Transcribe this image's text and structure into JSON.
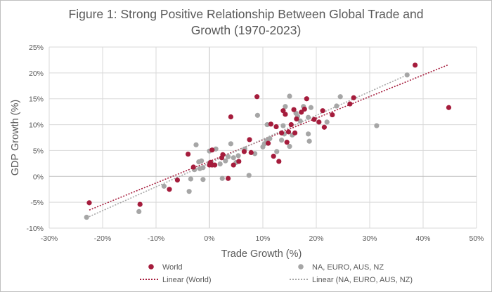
{
  "chart_data": {
    "type": "scatter",
    "title_lines": [
      "Figure 1: Strong Positive Relationship Between Global Trade and",
      "Growth (1970-2023)"
    ],
    "xlabel": "Trade Growth (%)",
    "ylabel": "GDP Growth (%)",
    "xlim": [
      -30,
      50
    ],
    "ylim": [
      -10,
      25
    ],
    "x_ticks": [
      -30,
      -20,
      -10,
      0,
      10,
      20,
      30,
      40,
      50
    ],
    "y_ticks": [
      -10,
      -5,
      0,
      5,
      10,
      15,
      20,
      25
    ],
    "x_tick_labels": [
      "-30%",
      "-20%",
      "-10%",
      "0%",
      "10%",
      "20%",
      "30%",
      "40%",
      "50%"
    ],
    "y_tick_labels": [
      "-10%",
      "-5%",
      "0%",
      "5%",
      "10%",
      "15%",
      "20%",
      "25%"
    ],
    "grid": "vertical and horizontal major gridlines",
    "legend_position": "bottom",
    "series": [
      {
        "name": "World",
        "color": "#a51c3c",
        "points": [
          [
            -22.5,
            -5.1
          ],
          [
            -13,
            -5.4
          ],
          [
            -7.5,
            -2.5
          ],
          [
            -6,
            -0.7
          ],
          [
            -4,
            4.3
          ],
          [
            -3,
            1.8
          ],
          [
            0,
            2.2
          ],
          [
            0.2,
            2.7
          ],
          [
            0.5,
            2.2
          ],
          [
            1,
            2.2
          ],
          [
            0.5,
            5.1
          ],
          [
            2.3,
            3.6
          ],
          [
            2.5,
            4.2
          ],
          [
            3.5,
            -0.4
          ],
          [
            4,
            11.5
          ],
          [
            4.5,
            2.2
          ],
          [
            5.5,
            2.9
          ],
          [
            6.5,
            4.8
          ],
          [
            7.5,
            7.1
          ],
          [
            7.8,
            4.6
          ],
          [
            8.9,
            15.4
          ],
          [
            11,
            6.4
          ],
          [
            11.5,
            10.1
          ],
          [
            12,
            3.9
          ],
          [
            12.5,
            9.6
          ],
          [
            13,
            2.9
          ],
          [
            13.5,
            8.4
          ],
          [
            13.8,
            12.7
          ],
          [
            14.2,
            12.0
          ],
          [
            14.5,
            6.6
          ],
          [
            14.8,
            8.6
          ],
          [
            15.3,
            10.0
          ],
          [
            15.8,
            12.9
          ],
          [
            16,
            8.4
          ],
          [
            16.3,
            11.1
          ],
          [
            17.2,
            12.4
          ],
          [
            17.8,
            13.0
          ],
          [
            18.2,
            15.0
          ],
          [
            19.6,
            11.0
          ],
          [
            20.5,
            10.5
          ],
          [
            21.2,
            12.7
          ],
          [
            21.5,
            9.5
          ],
          [
            23,
            11.9
          ],
          [
            26.3,
            14.0
          ],
          [
            27,
            15.2
          ],
          [
            38.5,
            21.5
          ],
          [
            44.8,
            13.3
          ]
        ]
      },
      {
        "name": "NA, EURO, AUS, NZ",
        "color": "#a6a6a6",
        "points": [
          [
            -23,
            -7.9
          ],
          [
            -13.2,
            -6.8
          ],
          [
            -8.5,
            -1.9
          ],
          [
            -3.8,
            -2.9
          ],
          [
            -3.5,
            -0.5
          ],
          [
            -2.8,
            1.3
          ],
          [
            -2.5,
            6.1
          ],
          [
            -2,
            2.8
          ],
          [
            -1.8,
            1.5
          ],
          [
            -1.5,
            3.0
          ],
          [
            -1.2,
            1.7
          ],
          [
            -1.2,
            -0.6
          ],
          [
            0,
            2.6
          ],
          [
            0,
            4.9
          ],
          [
            0.5,
            2.3
          ],
          [
            1.2,
            5.3
          ],
          [
            2,
            2.4
          ],
          [
            2.4,
            -0.4
          ],
          [
            3,
            3.0
          ],
          [
            3.5,
            3.8
          ],
          [
            4,
            6.3
          ],
          [
            4.5,
            3.6
          ],
          [
            5,
            2.7
          ],
          [
            5.4,
            4.0
          ],
          [
            6.6,
            5.3
          ],
          [
            7.4,
            0.2
          ],
          [
            8.5,
            4.4
          ],
          [
            9,
            11.8
          ],
          [
            10,
            5.7
          ],
          [
            10.3,
            6.3
          ],
          [
            10.7,
            6.9
          ],
          [
            10.8,
            10.0
          ],
          [
            11.3,
            7.3
          ],
          [
            12.6,
            4.8
          ],
          [
            13.5,
            7.0
          ],
          [
            13.8,
            9.8
          ],
          [
            14,
            8.2
          ],
          [
            14.2,
            13.5
          ],
          [
            15,
            5.8
          ],
          [
            15,
            15.5
          ],
          [
            15.5,
            8.0
          ],
          [
            16.2,
            12.2
          ],
          [
            16.5,
            11.6
          ],
          [
            17,
            10.7
          ],
          [
            17.6,
            13.5
          ],
          [
            18.5,
            8.2
          ],
          [
            18.5,
            11.4
          ],
          [
            18.7,
            6.8
          ],
          [
            19,
            13.3
          ],
          [
            22,
            10.5
          ],
          [
            23.8,
            13.6
          ],
          [
            24.5,
            15.4
          ],
          [
            31.3,
            9.8
          ],
          [
            37,
            19.6
          ]
        ]
      }
    ],
    "trendlines": [
      {
        "name": "Linear (World)",
        "color": "#a51c3c",
        "x": [
          -22.5,
          44.8
        ],
        "y": [
          -6.5,
          21.6
        ]
      },
      {
        "name": "Linear (NA, EURO, AUS, NZ)",
        "color": "#a6a6a6",
        "x": [
          -23,
          37
        ],
        "y": [
          -8.0,
          19.6
        ]
      }
    ]
  }
}
